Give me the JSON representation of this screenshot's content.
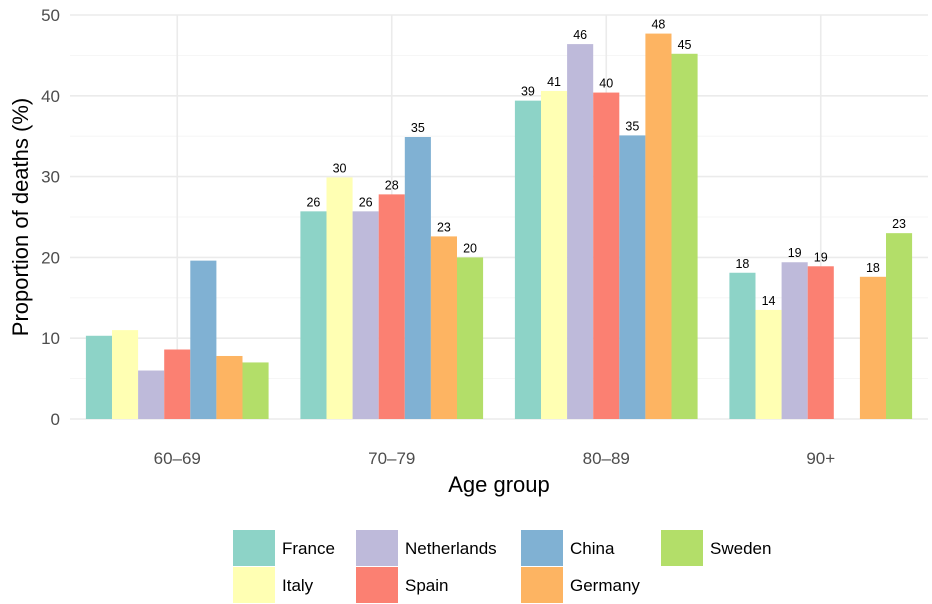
{
  "chart_data": {
    "type": "bar",
    "xlabel": "Age group",
    "ylabel": "Proportion of deaths (%)",
    "ylim": [
      0,
      50
    ],
    "yticks": [
      0,
      10,
      20,
      30,
      40,
      50
    ],
    "grid": true,
    "legend_position": "bottom",
    "categories": [
      "60–69",
      "70–79",
      "80–89",
      "90+"
    ],
    "series": [
      {
        "name": "France",
        "color": "#8dd3c7",
        "values": [
          10.3,
          25.7,
          39.4,
          18.1
        ],
        "labels": [
          null,
          "26",
          "39",
          "18"
        ]
      },
      {
        "name": "Italy",
        "color": "#ffffb3",
        "values": [
          11.0,
          29.9,
          40.6,
          13.5
        ],
        "labels": [
          null,
          "30",
          "41",
          "14"
        ]
      },
      {
        "name": "Netherlands",
        "color": "#bebada",
        "values": [
          6.0,
          25.7,
          46.4,
          19.4
        ],
        "labels": [
          null,
          "26",
          "46",
          "19"
        ]
      },
      {
        "name": "Spain",
        "color": "#fb8072",
        "values": [
          8.6,
          27.8,
          40.4,
          18.9
        ],
        "labels": [
          null,
          "28",
          "40",
          "19"
        ]
      },
      {
        "name": "China",
        "color": "#80b1d3",
        "values": [
          19.6,
          34.9,
          35.1,
          null
        ],
        "labels": [
          null,
          "35",
          "35",
          null
        ]
      },
      {
        "name": "Germany",
        "color": "#fdb462",
        "values": [
          7.8,
          22.6,
          47.7,
          17.6
        ],
        "labels": [
          null,
          "23",
          "48",
          "18"
        ]
      },
      {
        "name": "Sweden",
        "color": "#b3de69",
        "values": [
          7.0,
          20.0,
          45.2,
          23.0
        ],
        "labels": [
          null,
          "20",
          "45",
          "23"
        ]
      }
    ],
    "legend_layout": [
      [
        "France",
        "Netherlands",
        "China",
        "Sweden"
      ],
      [
        "Italy",
        "Spain",
        "Germany"
      ]
    ]
  }
}
